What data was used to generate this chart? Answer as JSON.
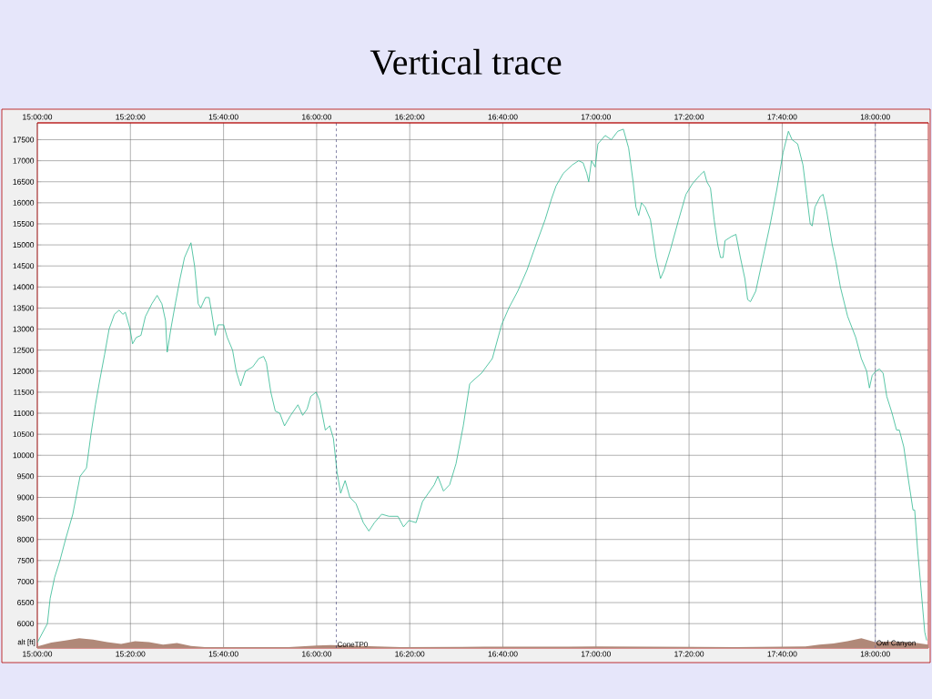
{
  "chart_data": {
    "type": "line",
    "title": "Vertical trace",
    "ylabel": "alt [ft]",
    "xlim": [
      15.0,
      18.19
    ],
    "ylim": [
      5420,
      17900
    ],
    "xticks": [
      {
        "value": 15.0,
        "label": "15:00:00"
      },
      {
        "value": 15.3333,
        "label": "15:20:00"
      },
      {
        "value": 15.6667,
        "label": "15:40:00"
      },
      {
        "value": 16.0,
        "label": "16:00:00"
      },
      {
        "value": 16.3333,
        "label": "16:20:00"
      },
      {
        "value": 16.6667,
        "label": "16:40:00"
      },
      {
        "value": 17.0,
        "label": "17:00:00"
      },
      {
        "value": 17.3333,
        "label": "17:20:00"
      },
      {
        "value": 17.6667,
        "label": "17:40:00"
      },
      {
        "value": 18.0,
        "label": "18:00:00"
      }
    ],
    "x2lim": [
      15.0,
      18.19
    ],
    "x2ticks": [
      {
        "value": 15.0,
        "label": "15:00:00"
      },
      {
        "value": 15.3333,
        "label": "15:20:00"
      },
      {
        "value": 15.6667,
        "label": "15:40:00"
      },
      {
        "value": 16.0,
        "label": "16:00:00"
      },
      {
        "value": 16.3333,
        "label": "16:20:00"
      },
      {
        "value": 16.6667,
        "label": "16:40:00"
      },
      {
        "value": 17.0,
        "label": "17:00:00"
      },
      {
        "value": 17.3333,
        "label": "17:20:00"
      },
      {
        "value": 17.6667,
        "label": "17:40:00"
      },
      {
        "value": 18.0,
        "label": "18:00:00"
      }
    ],
    "yticks": [
      6000,
      6500,
      7000,
      7500,
      8000,
      8500,
      9000,
      9500,
      10000,
      10500,
      11000,
      11500,
      12000,
      12500,
      13000,
      13500,
      14000,
      14500,
      15000,
      15500,
      16000,
      16500,
      17000,
      17500
    ],
    "grid": true,
    "ref_lines": [
      {
        "axis": "x",
        "value": 16.07,
        "label": "ConeTP0",
        "line_style": "dashed",
        "color": "#202060"
      },
      {
        "axis": "x",
        "value": 18.0,
        "label": "Owl Canyon",
        "line_style": "dashed",
        "color": "#6060a0"
      }
    ],
    "series": [
      {
        "type": "area",
        "color": "#b08878",
        "x": [
          15.0,
          15.05,
          15.1,
          15.15,
          15.2,
          15.25,
          15.3,
          15.35,
          15.4,
          15.45,
          15.5,
          15.55,
          15.6,
          15.65,
          15.9,
          16.0,
          16.05,
          16.3,
          16.6,
          16.9,
          17.0,
          17.5,
          17.75,
          17.8,
          17.85,
          17.9,
          17.95,
          18.0,
          18.05,
          18.1,
          18.15,
          18.19
        ],
        "values": [
          5460,
          5550,
          5600,
          5650,
          5620,
          5560,
          5520,
          5580,
          5560,
          5500,
          5540,
          5470,
          5440,
          5440,
          5440,
          5480,
          5490,
          5440,
          5450,
          5450,
          5460,
          5440,
          5460,
          5500,
          5530,
          5580,
          5650,
          5560,
          5570,
          5560,
          5540,
          5500
        ]
      },
      {
        "type": "line",
        "color": "#30b890",
        "x": [
          15.0,
          15.036,
          15.046,
          15.062,
          15.081,
          15.101,
          15.127,
          15.153,
          15.176,
          15.192,
          15.208,
          15.224,
          15.241,
          15.257,
          15.276,
          15.293,
          15.306,
          15.315,
          15.332,
          15.341,
          15.354,
          15.371,
          15.387,
          15.41,
          15.429,
          15.446,
          15.459,
          15.465,
          15.478,
          15.494,
          15.511,
          15.527,
          15.55,
          15.563,
          15.576,
          15.585,
          15.602,
          15.615,
          15.624,
          15.637,
          15.647,
          15.667,
          15.68,
          15.699,
          15.712,
          15.728,
          15.745,
          15.771,
          15.793,
          15.81,
          15.82,
          15.836,
          15.852,
          15.868,
          15.885,
          15.907,
          15.933,
          15.95,
          15.966,
          15.979,
          15.998,
          16.011,
          16.031,
          16.047,
          16.06,
          16.073,
          16.086,
          16.102,
          16.119,
          16.141,
          16.167,
          16.187,
          16.207,
          16.233,
          16.259,
          16.291,
          16.311,
          16.33,
          16.356,
          16.379,
          16.421,
          16.434,
          16.454,
          16.476,
          16.499,
          16.525,
          16.548,
          16.564,
          16.59,
          16.629,
          16.662,
          16.688,
          16.72,
          16.753,
          16.785,
          16.818,
          16.841,
          16.857,
          16.883,
          16.915,
          16.938,
          16.954,
          16.967,
          16.974,
          16.984,
          16.997,
          17.007,
          17.033,
          17.055,
          17.078,
          17.098,
          17.117,
          17.133,
          17.143,
          17.153,
          17.163,
          17.176,
          17.195,
          17.215,
          17.231,
          17.244,
          17.267,
          17.296,
          17.322,
          17.345,
          17.371,
          17.387,
          17.397,
          17.41,
          17.423,
          17.436,
          17.446,
          17.455,
          17.462,
          17.485,
          17.501,
          17.517,
          17.533,
          17.543,
          17.553,
          17.572,
          17.598,
          17.624,
          17.647,
          17.67,
          17.689,
          17.702,
          17.722,
          17.741,
          17.754,
          17.767,
          17.774,
          17.784,
          17.803,
          17.813,
          17.826,
          17.846,
          17.859,
          17.875,
          17.901,
          17.93,
          17.95,
          17.969,
          17.979,
          17.989,
          18.002,
          18.015,
          18.028,
          18.041,
          18.06,
          18.076,
          18.086,
          18.102,
          18.119,
          18.135,
          18.141,
          18.151,
          18.164,
          18.177,
          18.184
        ],
        "values": [
          5550,
          6000,
          6600,
          7100,
          7500,
          8000,
          8600,
          9500,
          9700,
          10500,
          11200,
          11800,
          12400,
          13000,
          13350,
          13450,
          13350,
          13400,
          13000,
          12650,
          12800,
          12850,
          13300,
          13600,
          13800,
          13600,
          13200,
          12450,
          13000,
          13600,
          14200,
          14700,
          15050,
          14500,
          13600,
          13500,
          13750,
          13750,
          13400,
          12850,
          13100,
          13100,
          12800,
          12500,
          12000,
          11650,
          12000,
          12100,
          12300,
          12350,
          12200,
          11500,
          11050,
          11000,
          10700,
          10950,
          11200,
          10950,
          11100,
          11400,
          11500,
          11300,
          10600,
          10700,
          10400,
          9600,
          9100,
          9400,
          9000,
          8850,
          8400,
          8200,
          8400,
          8600,
          8550,
          8550,
          8300,
          8450,
          8400,
          8900,
          9300,
          9500,
          9150,
          9300,
          9800,
          10700,
          11700,
          11800,
          11950,
          12300,
          13100,
          13500,
          13900,
          14400,
          15000,
          15600,
          16100,
          16400,
          16700,
          16900,
          17000,
          16950,
          16700,
          16500,
          17000,
          16850,
          17400,
          17600,
          17500,
          17700,
          17750,
          17300,
          16500,
          15900,
          15700,
          16000,
          15900,
          15600,
          14700,
          14200,
          14400,
          14900,
          15600,
          16200,
          16450,
          16650,
          16750,
          16500,
          16350,
          15600,
          15000,
          14700,
          14700,
          15100,
          15200,
          15250,
          14700,
          14200,
          13700,
          13650,
          13900,
          14700,
          15500,
          16300,
          17200,
          17700,
          17500,
          17400,
          16900,
          16200,
          15500,
          15450,
          15900,
          16150,
          16200,
          15800,
          15000,
          14600,
          14000,
          13300,
          12800,
          12300,
          12000,
          11600,
          11900,
          12000,
          12050,
          11950,
          11400,
          11000,
          10600,
          10600,
          10200,
          9400,
          8700,
          8700,
          7800,
          6800,
          5800,
          5600
        ]
      }
    ]
  }
}
